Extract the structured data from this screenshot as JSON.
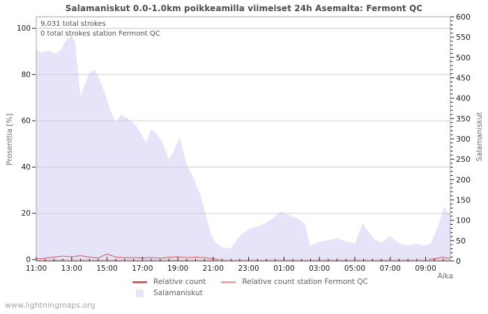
{
  "annotations": {
    "total_strokes": "9,031 total strokes",
    "station_strokes": "0 total strokes station Fermont QC"
  },
  "watermark": "www.lightningmaps.org",
  "legend": {
    "items": [
      {
        "label": "Relative count",
        "type": "line",
        "color": "#cf5f5f"
      },
      {
        "label": "Relative count station Fermont QC",
        "type": "line",
        "color": "#f2a9a9"
      },
      {
        "label": "Salamaniskut",
        "type": "area",
        "color": "#e6e4f8"
      }
    ]
  },
  "chart_data": {
    "type": "area",
    "title": "Salamaniskut 0.0-1.0km poikkeamilla viimeiset 24h Asemalta: Fermont QC",
    "x_axis": {
      "label": "Aika",
      "start_time": "11:00",
      "tick_labels": [
        "11:00",
        "13:00",
        "15:00",
        "17:00",
        "19:00",
        "21:00",
        "23:00",
        "01:00",
        "03:00",
        "05:00",
        "07:00",
        "09:00"
      ],
      "tick_hours": [
        0,
        2,
        4,
        6,
        8,
        10,
        12,
        14,
        16,
        18,
        20,
        22
      ],
      "minor_step_hours": 0.5,
      "range_hours": [
        0,
        23.4
      ]
    },
    "left_axis": {
      "label": "Prosenttia  [%]",
      "ticks": [
        0,
        20,
        40,
        60,
        80,
        100
      ],
      "range": [
        0,
        100
      ],
      "grid": true
    },
    "right_axis": {
      "label": "Salamaniskut",
      "ticks": [
        0,
        50,
        100,
        150,
        200,
        250,
        300,
        350,
        400,
        450,
        500,
        550,
        600
      ],
      "minor_step": 10,
      "range": [
        0,
        600
      ]
    },
    "colors": {
      "frame": "#a3a3a3",
      "grid": "#cdcdcd",
      "tick": "#1a1a1a",
      "axis_line": "#3c3c3c"
    },
    "series": [
      {
        "name": "Salamaniskut",
        "type": "area",
        "axis": "right",
        "fill": "#e6e4f8",
        "points": [
          [
            0,
            519
          ],
          [
            0.3,
            512
          ],
          [
            0.7,
            516
          ],
          [
            1.1,
            509
          ],
          [
            1.4,
            520
          ],
          [
            1.7,
            543
          ],
          [
            2.0,
            553
          ],
          [
            2.2,
            538
          ],
          [
            2.35,
            468
          ],
          [
            2.5,
            404
          ],
          [
            2.7,
            430
          ],
          [
            3.0,
            462
          ],
          [
            3.3,
            470
          ],
          [
            3.6,
            443
          ],
          [
            3.9,
            410
          ],
          [
            4.2,
            369
          ],
          [
            4.5,
            341
          ],
          [
            4.8,
            360
          ],
          [
            5.1,
            352
          ],
          [
            5.5,
            340
          ],
          [
            5.9,
            316
          ],
          [
            6.2,
            290
          ],
          [
            6.5,
            325
          ],
          [
            6.8,
            312
          ],
          [
            7.1,
            296
          ],
          [
            7.5,
            248
          ],
          [
            7.8,
            272
          ],
          [
            8.1,
            305
          ],
          [
            8.5,
            236
          ],
          [
            8.8,
            212
          ],
          [
            9.0,
            192
          ],
          [
            9.3,
            160
          ],
          [
            9.6,
            110
          ],
          [
            9.9,
            62
          ],
          [
            10.2,
            42
          ],
          [
            10.6,
            32
          ],
          [
            11.0,
            31
          ],
          [
            11.5,
            62
          ],
          [
            12.0,
            78
          ],
          [
            12.7,
            88
          ],
          [
            13.3,
            102
          ],
          [
            13.8,
            121
          ],
          [
            14.3,
            112
          ],
          [
            14.8,
            103
          ],
          [
            15.2,
            90
          ],
          [
            15.45,
            38
          ],
          [
            16.0,
            47
          ],
          [
            16.5,
            51
          ],
          [
            17.0,
            56
          ],
          [
            17.6,
            47
          ],
          [
            18.0,
            42
          ],
          [
            18.45,
            92
          ],
          [
            18.75,
            73
          ],
          [
            19.1,
            54
          ],
          [
            19.5,
            45
          ],
          [
            20.0,
            61
          ],
          [
            20.5,
            43
          ],
          [
            21.0,
            38
          ],
          [
            21.5,
            43
          ],
          [
            21.9,
            37
          ],
          [
            22.3,
            43
          ],
          [
            22.7,
            85
          ],
          [
            23.05,
            133
          ],
          [
            23.25,
            119
          ],
          [
            23.4,
            114
          ]
        ]
      },
      {
        "name": "Relative count",
        "type": "line",
        "axis": "left",
        "color": "#cf5f5f",
        "segments": [
          [
            [
              0,
              0.3
            ],
            [
              0.5,
              0.6
            ],
            [
              1.0,
              1.1
            ],
            [
              1.5,
              1.5
            ],
            [
              2.0,
              1.2
            ],
            [
              2.5,
              1.7
            ],
            [
              3.0,
              1.1
            ],
            [
              3.5,
              0.7
            ],
            [
              4.0,
              2.4
            ],
            [
              4.5,
              1.1
            ],
            [
              5.0,
              0.8
            ],
            [
              5.5,
              0.9
            ],
            [
              6.0,
              0.7
            ],
            [
              6.5,
              0.9
            ],
            [
              7.0,
              0.6
            ],
            [
              7.5,
              1.0
            ],
            [
              8.0,
              1.2
            ],
            [
              8.5,
              0.9
            ],
            [
              9.0,
              1.1
            ],
            [
              9.5,
              0.9
            ],
            [
              9.9,
              0.4
            ],
            [
              10.3,
              0.1
            ]
          ],
          [
            [
              22.2,
              0.1
            ],
            [
              22.6,
              0.5
            ],
            [
              23.0,
              1.1
            ],
            [
              23.2,
              0.7
            ],
            [
              23.4,
              0.5
            ]
          ]
        ]
      },
      {
        "name": "Relative count station Fermont QC",
        "type": "line",
        "axis": "left",
        "color": "#f2a9a9",
        "segments": [
          [
            [
              0,
              0
            ],
            [
              23.4,
              0
            ]
          ]
        ]
      }
    ]
  }
}
